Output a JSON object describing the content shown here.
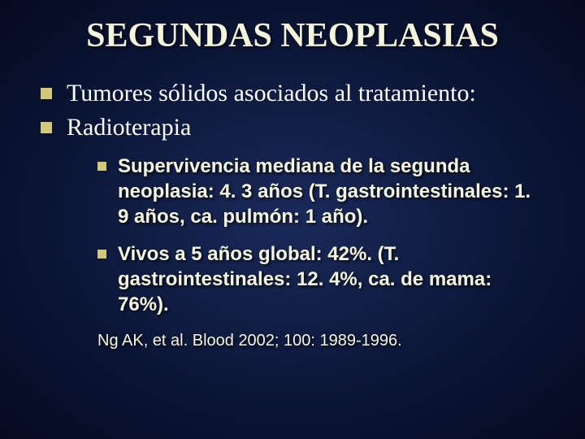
{
  "colors": {
    "background_center": "#1a2a5a",
    "background_mid": "#0a1535",
    "background_edge": "#050a20",
    "title_color": "#f5f5dc",
    "body_color": "#ffffff",
    "sub_color": "#f5f5dc",
    "bullet_color": "#d4c878"
  },
  "typography": {
    "title_fontsize": 42,
    "level1_fontsize": 30,
    "level2_fontsize": 24,
    "citation_fontsize": 20,
    "title_font": "Times New Roman",
    "level1_font": "Times New Roman",
    "level2_font": "Comic Sans MS",
    "citation_font": "Comic Sans MS"
  },
  "title": "SEGUNDAS NEOPLASIAS",
  "bullets_level1": [
    "Tumores sólidos asociados al tratamiento:",
    "Radioterapia"
  ],
  "bullets_level2": [
    "Supervivencia mediana de la segunda neoplasia: 4. 3 años (T. gastrointestinales: 1. 9 años, ca. pulmón: 1 año).",
    "Vivos a 5 años global: 42%. (T. gastrointestinales: 12. 4%, ca. de mama: 76%)."
  ],
  "citation": "Ng AK, et al.  Blood 2002; 100: 1989-1996."
}
